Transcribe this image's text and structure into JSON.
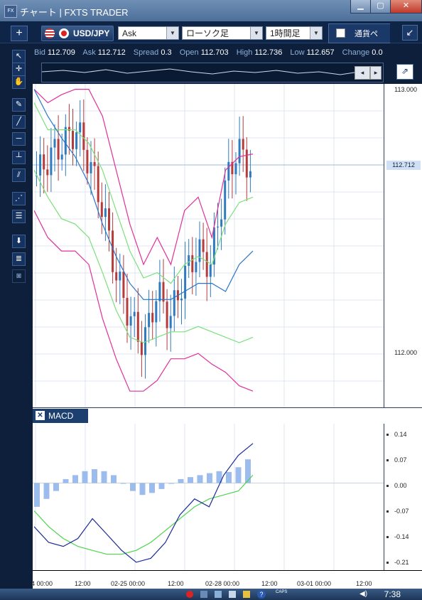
{
  "window": {
    "title": "チャート | FXTS TRADER",
    "app_icon": "FX"
  },
  "toolbar": {
    "add_label": "+",
    "symbol": "USD/JPY",
    "price_type": "Ask",
    "chart_style": "ローソク足",
    "timeframe": "1時間足",
    "currency_strength": "通貨ペ"
  },
  "quotes": {
    "bid_label": "Bid",
    "bid": "112.709",
    "ask_label": "Ask",
    "ask": "112.712",
    "spread_label": "Spread",
    "spread": "0.3",
    "open_label": "Open",
    "open": "112.703",
    "high_label": "High",
    "high": "112.736",
    "low_label": "Low",
    "low": "112.657",
    "change_label": "Change",
    "change": "0.0"
  },
  "price_axis": {
    "ticks": [
      "113.000",
      "112.000"
    ],
    "current_price": "112.712"
  },
  "macd_panel": {
    "label": "MACD",
    "close_label": "✕",
    "ticks": [
      "0.14",
      "0.07",
      "0.00",
      "-0.07",
      "-0.14",
      "-0.21"
    ]
  },
  "time_axis": {
    "labels": [
      "4 00:00",
      "12:00",
      "02-25 00:00",
      "12:00",
      "02-28 00:00",
      "12:00",
      "03-01 00:00",
      "12:00"
    ]
  },
  "taskbar": {
    "clock": "7:38",
    "caps": "CAPS"
  },
  "colors": {
    "bull_candle": "#2f7bbf",
    "bear_candle": "#b53a3a",
    "bollinger_outer": "#e0309a",
    "bollinger_inner": "#7be07b",
    "moving_average": "#2a74c8",
    "macd_line": "#1a2a9a",
    "signal_line": "#4cd44c",
    "histogram": "#9bbcec"
  },
  "chart_data": [
    {
      "type": "line",
      "title": "",
      "symbol": "USD/JPY",
      "timeframe": "1時間足",
      "ylim": [
        111.82,
        113.02
      ],
      "x": [
        "02-24 00:00",
        "02-24 12:00",
        "02-25 00:00",
        "02-25 12:00",
        "02-28 00:00"
      ],
      "series": [
        {
          "candles_close": [
            112.68,
            112.75,
            112.8,
            112.85,
            112.72,
            112.55,
            112.3,
            112.15,
            112.05,
            112.25,
            112.15,
            112.3,
            112.4,
            112.35,
            112.62,
            112.78,
            112.71
          ]
        },
        {
          "bb_upper": [
            113.0,
            112.95,
            112.98,
            113.0,
            113.0,
            112.9,
            112.7,
            112.5,
            112.35,
            112.45,
            112.35,
            112.55,
            112.6,
            112.45,
            112.7,
            112.75,
            112.76
          ]
        },
        {
          "bb_lower": [
            112.55,
            112.45,
            112.4,
            112.4,
            112.35,
            112.15,
            112.0,
            111.88,
            111.88,
            111.92,
            112.0,
            112.0,
            112.02,
            111.98,
            111.95,
            111.9,
            111.88
          ]
        },
        {
          "bb_inner_upper": [
            112.95,
            112.85,
            112.85,
            112.85,
            112.8,
            112.7,
            112.55,
            112.4,
            112.3,
            112.32,
            112.28,
            112.35,
            112.38,
            112.35,
            112.5,
            112.58,
            112.6
          ]
        },
        {
          "bb_inner_lower": [
            112.7,
            112.6,
            112.52,
            112.5,
            112.45,
            112.32,
            112.18,
            112.08,
            112.06,
            112.08,
            112.1,
            112.1,
            112.12,
            112.1,
            112.08,
            112.06,
            112.08
          ]
        },
        {
          "moving_average": [
            113.0,
            112.9,
            112.82,
            112.75,
            112.65,
            112.5,
            112.38,
            112.28,
            112.22,
            112.22,
            112.22,
            112.25,
            112.28,
            112.28,
            112.25,
            112.35,
            112.4
          ]
        }
      ]
    },
    {
      "type": "bar",
      "title": "MACD",
      "ylim": [
        -0.22,
        0.15
      ],
      "histogram": [
        -0.06,
        -0.04,
        -0.02,
        0.01,
        0.02,
        0.03,
        0.035,
        0.03,
        0.02,
        0.0,
        -0.02,
        -0.03,
        -0.025,
        -0.015,
        0.0,
        0.01,
        0.015,
        0.02,
        0.025,
        0.03,
        0.028,
        0.04,
        0.06
      ],
      "macd_line": [
        -0.11,
        -0.15,
        -0.16,
        -0.14,
        -0.09,
        -0.13,
        -0.17,
        -0.2,
        -0.19,
        -0.15,
        -0.08,
        -0.04,
        -0.06,
        0.02,
        0.07,
        0.1
      ],
      "signal_line": [
        -0.07,
        -0.11,
        -0.14,
        -0.16,
        -0.17,
        -0.18,
        -0.18,
        -0.17,
        -0.15,
        -0.12,
        -0.09,
        -0.06,
        -0.04,
        -0.03,
        -0.02,
        0.02
      ]
    }
  ]
}
